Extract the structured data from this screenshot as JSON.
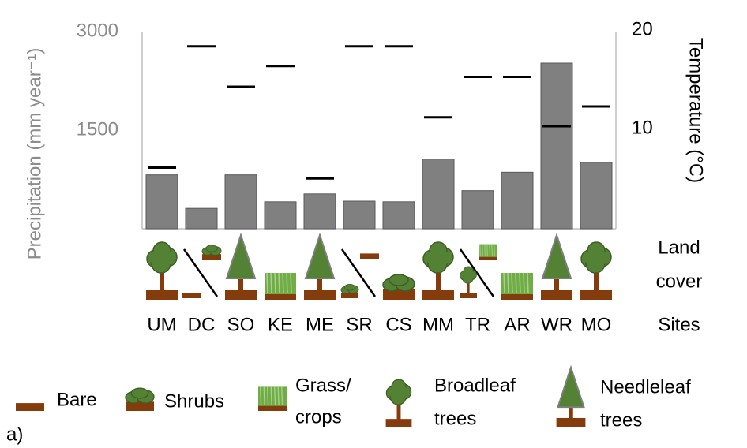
{
  "chart_data": {
    "type": "bar",
    "y_label": "Precipitation (mm year⁻¹)",
    "y2_label": "Temperature (°C)",
    "categories": [
      "UM",
      "DC",
      "SO",
      "KE",
      "ME",
      "SR",
      "CS",
      "MM",
      "TR",
      "AR",
      "WR",
      "MO"
    ],
    "series": [
      {
        "type": "bar",
        "color": "#808080",
        "values": [
          820,
          310,
          820,
          410,
          530,
          420,
          410,
          1060,
          580,
          860,
          2520,
          1010
        ]
      },
      {
        "type": "dash",
        "color": "#000000",
        "axis": "y2",
        "values": [
          6.2,
          18.5,
          14.4,
          16.5,
          5.1,
          18.5,
          18.5,
          11.3,
          15.4,
          15.4,
          10.4,
          12.4
        ]
      }
    ],
    "ylim": [
      0,
      3000
    ],
    "yticks": [
      1500,
      3000
    ],
    "y2lim": [
      0,
      20
    ],
    "y2ticks": [
      10,
      20
    ],
    "grid": false,
    "land_cover_label": [
      "Land",
      "cover"
    ],
    "sites_label": "Sites",
    "legend": [
      {
        "label": [
          "Bare"
        ]
      },
      {
        "label": [
          "Shrubs"
        ]
      },
      {
        "label": [
          "Grass/",
          "crops"
        ]
      },
      {
        "label": [
          "Broadleaf",
          "trees"
        ]
      },
      {
        "label": [
          "Needleleaf",
          "trees"
        ]
      }
    ],
    "panel_label": "a)"
  }
}
